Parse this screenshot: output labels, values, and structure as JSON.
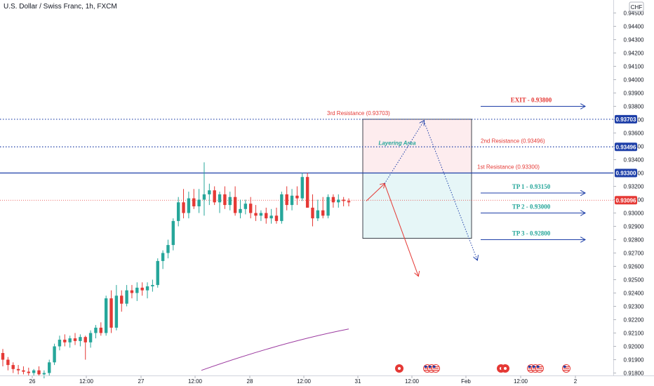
{
  "header": {
    "title": "U.S. Dollar / Swiss Franc, 1h, FXCM",
    "currency_badge": "CHF"
  },
  "chart_data": {
    "type": "candlestick",
    "title": "U.S. Dollar / Swiss Franc, 1h, FXCM",
    "ylim": [
      0.918,
      0.9455
    ],
    "y_ticks": [
      "0.94500",
      "0.94400",
      "0.94300",
      "0.94200",
      "0.94100",
      "0.94000",
      "0.93900",
      "0.93800",
      "0.93700",
      "0.93600",
      "0.93500",
      "0.93400",
      "0.93300",
      "0.93200",
      "0.93100",
      "0.93000",
      "0.92900",
      "0.92800",
      "0.92700",
      "0.92600",
      "0.92500",
      "0.92400",
      "0.92300",
      "0.92200",
      "0.92100",
      "0.92000",
      "0.91900",
      "0.91800"
    ],
    "x_ticks": [
      "26",
      "12:00",
      "27",
      "12:00",
      "28",
      "12:00",
      "31",
      "12:00",
      "Feb",
      "12:00",
      "2"
    ],
    "candles": [
      [
        0.9195,
        0.9198,
        0.9185,
        0.919
      ],
      [
        0.919,
        0.9192,
        0.9182,
        0.9186
      ],
      [
        0.9186,
        0.9188,
        0.918,
        0.9183
      ],
      [
        0.9183,
        0.9186,
        0.9179,
        0.9182
      ],
      [
        0.9182,
        0.9185,
        0.9179,
        0.9181
      ],
      [
        0.9181,
        0.9184,
        0.9178,
        0.918
      ],
      [
        0.918,
        0.9183,
        0.9178,
        0.9182
      ],
      [
        0.9182,
        0.9185,
        0.9178,
        0.9179
      ],
      [
        0.9179,
        0.9182,
        0.9176,
        0.918
      ],
      [
        0.918,
        0.919,
        0.9178,
        0.9188
      ],
      [
        0.9188,
        0.9202,
        0.9186,
        0.92
      ],
      [
        0.92,
        0.9208,
        0.9197,
        0.9205
      ],
      [
        0.9205,
        0.9209,
        0.92,
        0.9203
      ],
      [
        0.9203,
        0.9208,
        0.9199,
        0.9206
      ],
      [
        0.9206,
        0.921,
        0.9201,
        0.9204
      ],
      [
        0.9204,
        0.9209,
        0.92,
        0.9207
      ],
      [
        0.9207,
        0.9208,
        0.919,
        0.9203
      ],
      [
        0.9203,
        0.9212,
        0.9199,
        0.921
      ],
      [
        0.921,
        0.9216,
        0.9206,
        0.9214
      ],
      [
        0.9214,
        0.9218,
        0.9208,
        0.921
      ],
      [
        0.921,
        0.9238,
        0.9208,
        0.9236
      ],
      [
        0.9236,
        0.9242,
        0.921,
        0.9214
      ],
      [
        0.9214,
        0.9246,
        0.9212,
        0.9238
      ],
      [
        0.9238,
        0.9242,
        0.9226,
        0.9232
      ],
      [
        0.9232,
        0.9246,
        0.923,
        0.9242
      ],
      [
        0.9242,
        0.9246,
        0.9236,
        0.924
      ],
      [
        0.924,
        0.9248,
        0.9234,
        0.9244
      ],
      [
        0.9244,
        0.9248,
        0.9238,
        0.9242
      ],
      [
        0.9242,
        0.9248,
        0.9236,
        0.9245
      ],
      [
        0.9245,
        0.925,
        0.9241,
        0.9246
      ],
      [
        0.9246,
        0.9266,
        0.9244,
        0.9264
      ],
      [
        0.9264,
        0.9272,
        0.9258,
        0.927
      ],
      [
        0.927,
        0.928,
        0.9266,
        0.9276
      ],
      [
        0.9276,
        0.9296,
        0.9272,
        0.9294
      ],
      [
        0.9294,
        0.9312,
        0.929,
        0.9308
      ],
      [
        0.9308,
        0.9318,
        0.9296,
        0.93
      ],
      [
        0.93,
        0.9316,
        0.9296,
        0.9311
      ],
      [
        0.9311,
        0.9318,
        0.9303,
        0.9305
      ],
      [
        0.9305,
        0.9318,
        0.93,
        0.931
      ],
      [
        0.931,
        0.9338,
        0.9298,
        0.9314
      ],
      [
        0.9314,
        0.9322,
        0.9306,
        0.9317
      ],
      [
        0.9317,
        0.932,
        0.9306,
        0.9308
      ],
      [
        0.9308,
        0.9316,
        0.93,
        0.9314
      ],
      [
        0.9314,
        0.932,
        0.9303,
        0.9306
      ],
      [
        0.9306,
        0.9316,
        0.9302,
        0.9312
      ],
      [
        0.9312,
        0.932,
        0.9298,
        0.93
      ],
      [
        0.93,
        0.931,
        0.9296,
        0.9303
      ],
      [
        0.9303,
        0.931,
        0.9299,
        0.9307
      ],
      [
        0.9307,
        0.9312,
        0.9296,
        0.93
      ],
      [
        0.93,
        0.9306,
        0.9294,
        0.9298
      ],
      [
        0.9298,
        0.9302,
        0.9294,
        0.93
      ],
      [
        0.93,
        0.9304,
        0.9292,
        0.9296
      ],
      [
        0.9296,
        0.9303,
        0.9292,
        0.9298
      ],
      [
        0.9298,
        0.9304,
        0.9292,
        0.9294
      ],
      [
        0.9294,
        0.9316,
        0.9292,
        0.9314
      ],
      [
        0.9314,
        0.932,
        0.9302,
        0.9306
      ],
      [
        0.9306,
        0.9318,
        0.9302,
        0.9313
      ],
      [
        0.9313,
        0.932,
        0.9306,
        0.9311
      ],
      [
        0.9311,
        0.933,
        0.9309,
        0.9327
      ],
      [
        0.9327,
        0.933,
        0.9304,
        0.9304
      ],
      [
        0.9304,
        0.9314,
        0.929,
        0.9296
      ],
      [
        0.9296,
        0.931,
        0.9294,
        0.9302
      ],
      [
        0.9302,
        0.9312,
        0.9296,
        0.9298
      ],
      [
        0.9298,
        0.9314,
        0.9296,
        0.9312
      ],
      [
        0.9312,
        0.9314,
        0.9304,
        0.9308
      ],
      [
        0.9308,
        0.9314,
        0.9304,
        0.931
      ],
      [
        0.931,
        0.9312,
        0.9305,
        0.9309
      ],
      [
        0.9309,
        0.9311,
        0.9305,
        0.9308
      ]
    ],
    "moving_average": {
      "x_start": 0.9182,
      "x_end": 0.9213
    },
    "current_price": "0.93096",
    "levels": [
      {
        "label": "3rd Resistance (0.93703)",
        "price": 0.93703,
        "tag": "0.93703",
        "style": "dotted"
      },
      {
        "label": "2nd Resistance (0.93496)",
        "price": 0.93496,
        "tag": "0.93496",
        "style": "dotted"
      },
      {
        "label": "1st Resistance (0.93300)",
        "price": 0.933,
        "tag": "0.93300",
        "style": "solid"
      }
    ],
    "zone_label": "Layering Area",
    "zone": {
      "top": 0.93703,
      "mid": 0.933,
      "bottom": 0.9281
    },
    "targets": [
      {
        "label": "EXIT - 0.93800",
        "price": 0.938,
        "color": "#e53935"
      },
      {
        "label": "TP 1 - 0.93150",
        "price": 0.9315,
        "color": "#26a69a"
      },
      {
        "label": "TP 2 - 0.93000",
        "price": 0.93,
        "color": "#26a69a"
      },
      {
        "label": "TP 3 - 0.92800",
        "price": 0.928,
        "color": "#26a69a"
      }
    ],
    "colors": {
      "up": "#26a69a",
      "down": "#e53935",
      "level": "#1e3fa8",
      "target_arrow": "#1e3fa8",
      "ma": "#9c3ba0"
    }
  }
}
